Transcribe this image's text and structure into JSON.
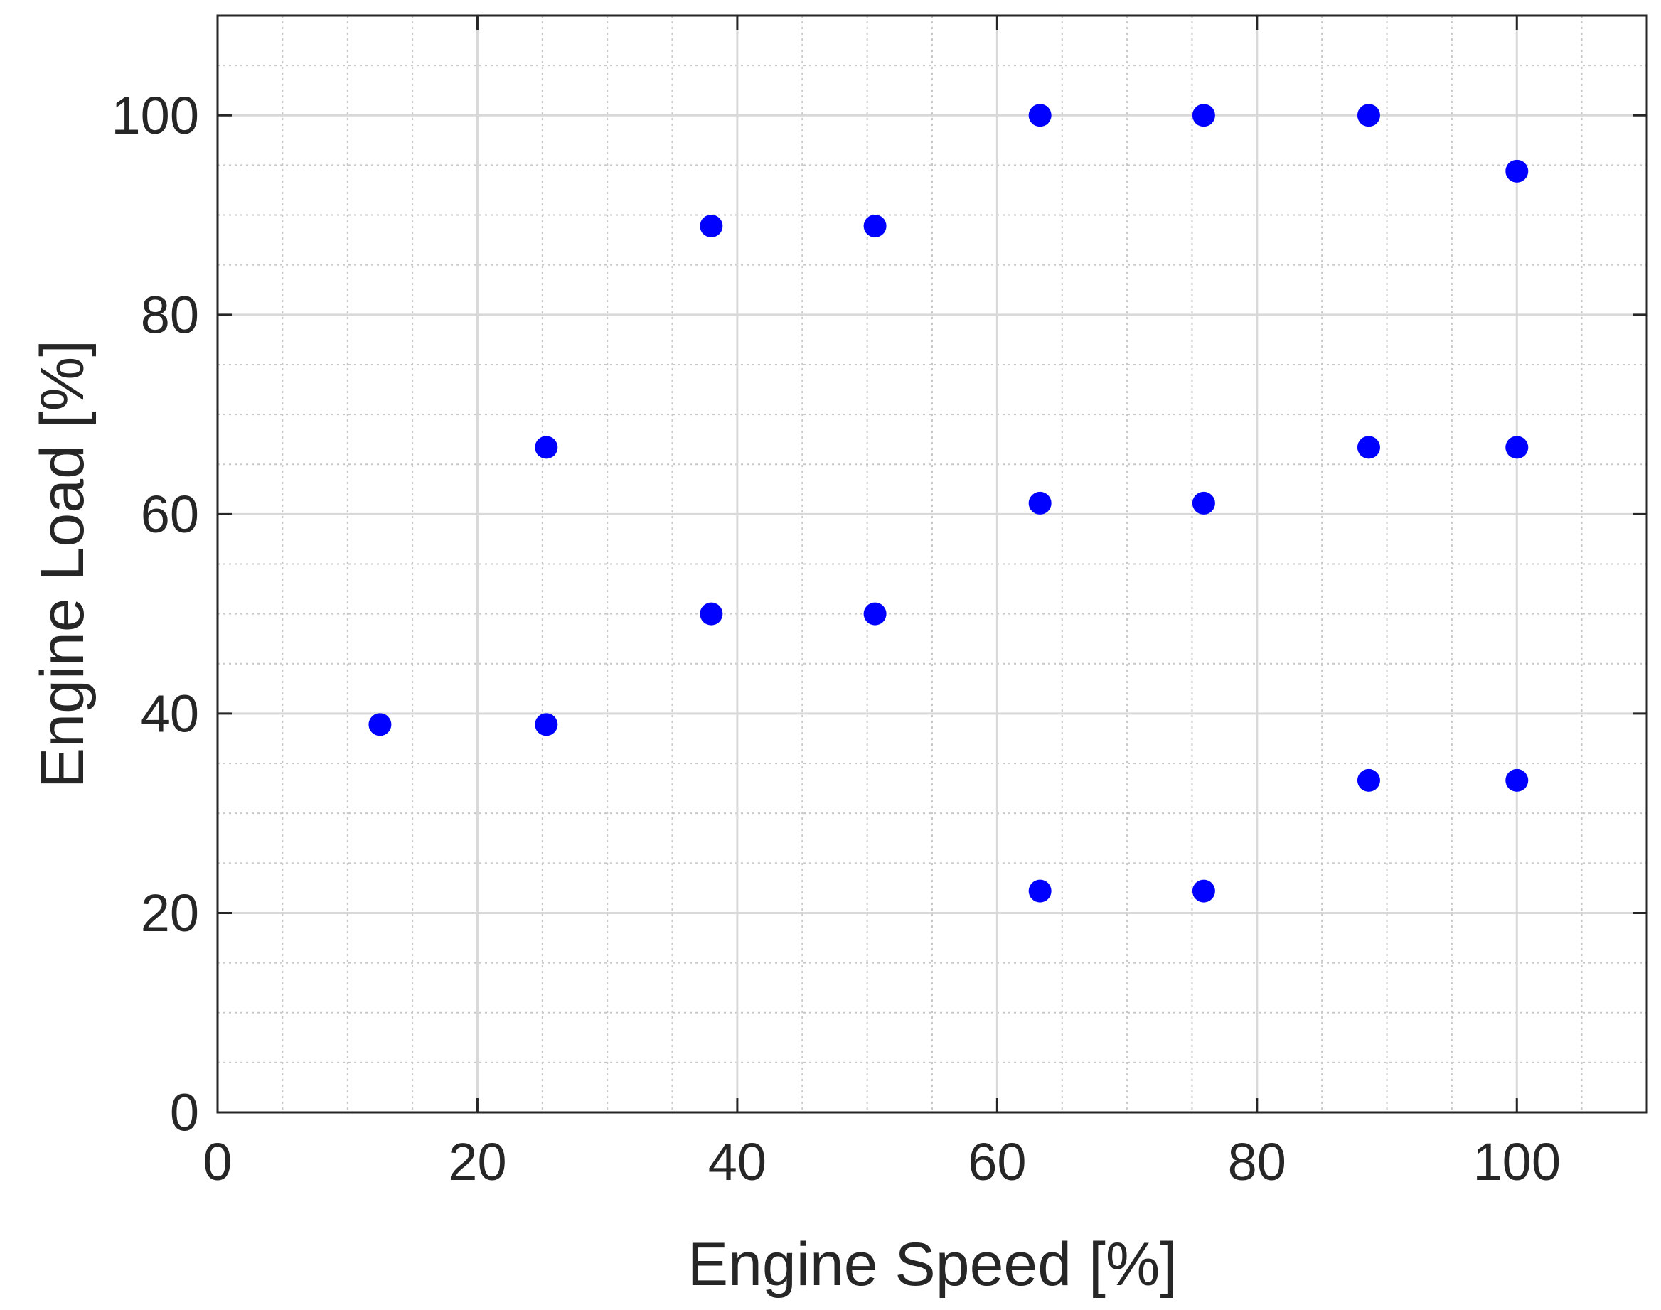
{
  "chart_data": {
    "type": "scatter",
    "title": "",
    "xlabel": "Engine Speed [%]",
    "ylabel": "Engine Load [%]",
    "xlim": [
      0,
      110
    ],
    "ylim": [
      0,
      110
    ],
    "xticks": [
      0,
      20,
      40,
      60,
      80,
      100
    ],
    "yticks": [
      0,
      20,
      40,
      60,
      80,
      100
    ],
    "xtick_labels": [
      "0",
      "20",
      "40",
      "60",
      "80",
      "100"
    ],
    "ytick_labels": [
      "0",
      "20",
      "40",
      "60",
      "80",
      "100"
    ],
    "x_minor_step": 5,
    "y_minor_step": 5,
    "grid": true,
    "minor_grid": true,
    "legend": "none",
    "marker_color": "#0000ff",
    "series": [
      {
        "points": [
          {
            "x": 12.5,
            "y": 38.9
          },
          {
            "x": 25.3,
            "y": 38.9
          },
          {
            "x": 25.3,
            "y": 66.7
          },
          {
            "x": 38.0,
            "y": 50.0
          },
          {
            "x": 38.0,
            "y": 88.9
          },
          {
            "x": 50.6,
            "y": 50.0
          },
          {
            "x": 50.6,
            "y": 88.9
          },
          {
            "x": 63.3,
            "y": 22.2
          },
          {
            "x": 63.3,
            "y": 61.1
          },
          {
            "x": 63.3,
            "y": 100.0
          },
          {
            "x": 75.9,
            "y": 22.2
          },
          {
            "x": 75.9,
            "y": 61.1
          },
          {
            "x": 75.9,
            "y": 100.0
          },
          {
            "x": 88.6,
            "y": 33.3
          },
          {
            "x": 88.6,
            "y": 66.7
          },
          {
            "x": 88.6,
            "y": 100.0
          },
          {
            "x": 100.0,
            "y": 33.3
          },
          {
            "x": 100.0,
            "y": 66.7
          },
          {
            "x": 100.0,
            "y": 94.4
          }
        ]
      }
    ]
  }
}
